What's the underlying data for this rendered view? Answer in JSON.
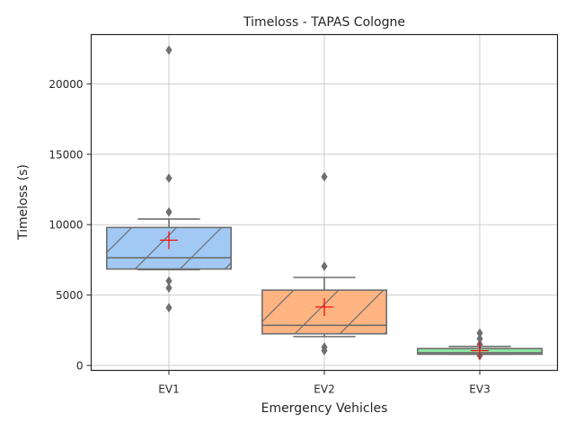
{
  "chart_data": {
    "type": "box",
    "title": "Timeloss  - TAPAS Cologne",
    "xlabel": "Emergency Vehicles",
    "ylabel": "Timeloss (s)",
    "ylim": [
      -350,
      23500
    ],
    "yticks": [
      0,
      5000,
      10000,
      15000,
      20000
    ],
    "ytick_labels": [
      "0",
      "5000",
      "10000",
      "15000",
      "20000"
    ],
    "grid": true,
    "categories": [
      "EV1",
      "EV2",
      "EV3"
    ],
    "boxes": [
      {
        "category": "EV1",
        "color": "#a1c9f4",
        "hatch": "diagonal",
        "q1": 6850,
        "median": 7650,
        "q3": 9800,
        "whisker_low": 6800,
        "whisker_high": 10400,
        "mean": 8900,
        "outliers": [
          22400,
          13300,
          10900,
          6000,
          5500,
          4100
        ]
      },
      {
        "category": "EV2",
        "color": "#ffb482",
        "hatch": "diagonal",
        "q1": 2250,
        "median": 2850,
        "q3": 5350,
        "whisker_low": 2050,
        "whisker_high": 6250,
        "mean": 4150,
        "outliers": [
          13400,
          7050,
          1300,
          1050
        ]
      },
      {
        "category": "EV3",
        "color": "#8de5a1",
        "hatch": "none",
        "q1": 800,
        "median": 900,
        "q3": 1200,
        "whisker_low": 800,
        "whisker_high": 1350,
        "mean": 1050,
        "outliers": [
          2300,
          1900,
          1500,
          700
        ]
      }
    ],
    "styles": {
      "edge_color": "#6e6e6e",
      "mean_marker_color": "#ff0000",
      "grid_color": "#cccccc",
      "axis_color": "#262626"
    }
  }
}
